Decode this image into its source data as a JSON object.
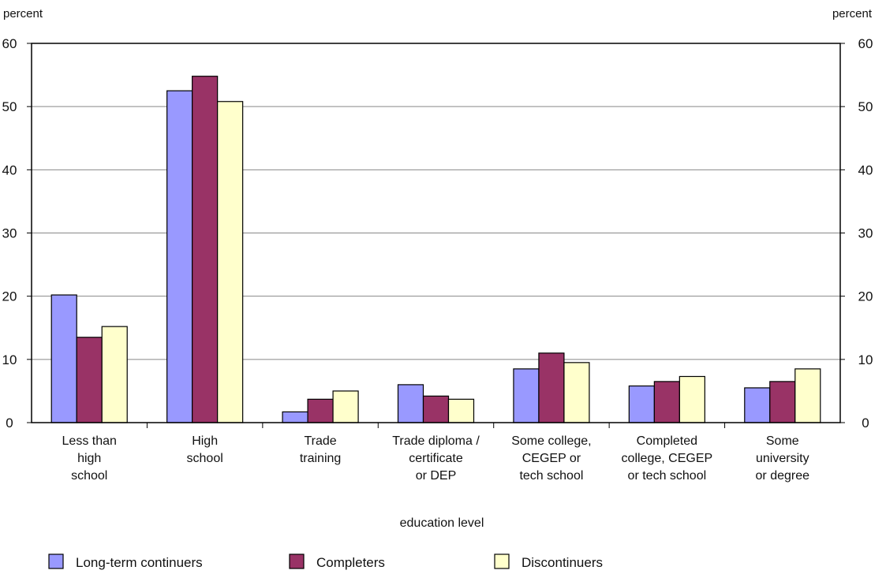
{
  "chart_data": {
    "type": "bar",
    "title": "",
    "xlabel": "education level",
    "ylabel_left": "percent",
    "ylabel_right": "percent",
    "ylim": [
      0,
      60
    ],
    "yticks": [
      0,
      10,
      20,
      30,
      40,
      50,
      60
    ],
    "grid": true,
    "legend_position": "bottom",
    "categories": [
      [
        "Less than",
        "high",
        "school"
      ],
      [
        "High",
        "school"
      ],
      [
        "Trade",
        "training"
      ],
      [
        "Trade diploma /",
        "certificate",
        "or DEP"
      ],
      [
        "Some college,",
        "CEGEP or",
        "tech school"
      ],
      [
        "Completed",
        "college, CEGEP",
        "or tech school"
      ],
      [
        "Some",
        "university",
        "or degree"
      ]
    ],
    "series": [
      {
        "name": "Long-term continuers",
        "color": "#9999ff",
        "values": [
          20.2,
          52.5,
          1.7,
          6.0,
          8.5,
          5.8,
          5.5
        ]
      },
      {
        "name": "Completers",
        "color": "#993366",
        "values": [
          13.5,
          54.8,
          3.7,
          4.2,
          11.0,
          6.5,
          6.5
        ]
      },
      {
        "name": "Discontinuers",
        "color": "#ffffcc",
        "values": [
          15.2,
          50.8,
          5.0,
          3.7,
          9.5,
          7.3,
          8.5
        ]
      }
    ]
  }
}
